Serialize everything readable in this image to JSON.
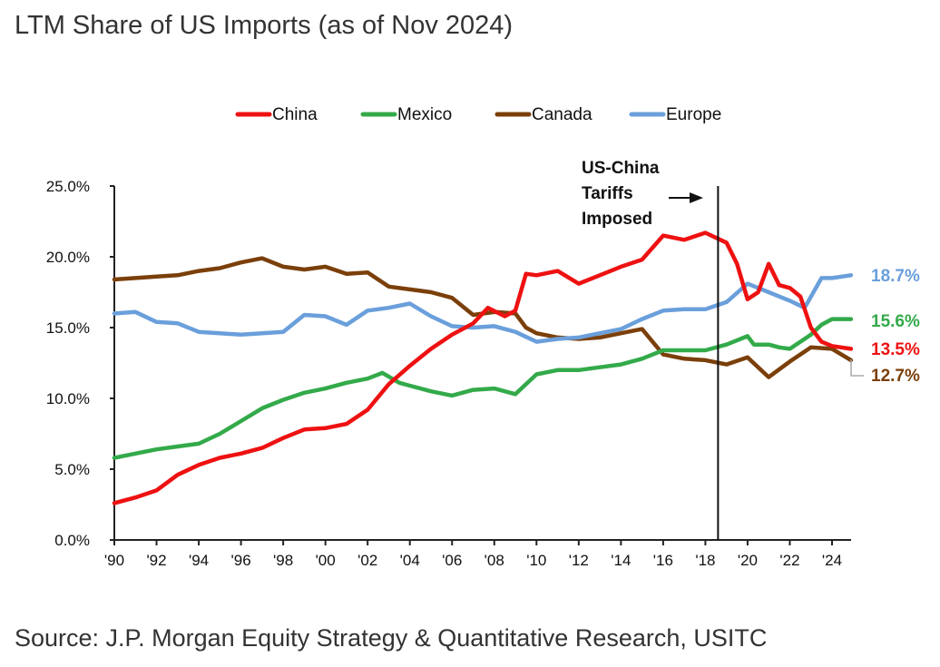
{
  "title": "LTM Share of US Imports (as of Nov 2024)",
  "source": "Source: J.P. Morgan Equity Strategy & Quantitative Research, USITC",
  "chart_data": {
    "type": "line",
    "title": "LTM Share of US Imports (as of Nov 2024)",
    "xlabel": "",
    "ylabel": "",
    "xlim": [
      1990,
      2024.9
    ],
    "ylim": [
      0,
      25
    ],
    "y_ticks": [
      "0.0%",
      "5.0%",
      "10.0%",
      "15.0%",
      "20.0%",
      "25.0%"
    ],
    "x_ticks": [
      "'90",
      "'92",
      "'94",
      "'96",
      "'98",
      "'00",
      "'02",
      "'04",
      "'06",
      "'08",
      "'10",
      "'12",
      "'14",
      "'16",
      "'18",
      "'20",
      "'22",
      "'24"
    ],
    "legend_placement": "top-center",
    "grid": false,
    "annotation": {
      "lines": [
        "US-China",
        "Tariffs",
        "Imposed"
      ],
      "x": 2018.6
    },
    "series": [
      {
        "name": "China",
        "color": "#ee1111",
        "end_label": "13.5%",
        "x": [
          1990,
          1991,
          1992,
          1993,
          1994,
          1995,
          1996,
          1997,
          1998,
          1999,
          2000,
          2001,
          2002,
          2003,
          2004,
          2005,
          2006,
          2007,
          2007.7,
          2008.5,
          2009,
          2009.5,
          2010,
          2011,
          2012,
          2013,
          2014,
          2015,
          2016,
          2017,
          2018,
          2019,
          2019.5,
          2020,
          2020.5,
          2021,
          2021.5,
          2022,
          2022.5,
          2023,
          2023.5,
          2024,
          2024.9
        ],
        "y": [
          2.6,
          3.0,
          3.5,
          4.6,
          5.3,
          5.8,
          6.1,
          6.5,
          7.2,
          7.8,
          7.9,
          8.2,
          9.2,
          11.0,
          12.3,
          13.5,
          14.5,
          15.3,
          16.4,
          15.8,
          16.2,
          18.8,
          18.7,
          19.0,
          18.1,
          18.7,
          19.3,
          19.8,
          21.5,
          21.2,
          21.7,
          21.0,
          19.5,
          17.0,
          17.5,
          19.5,
          18.0,
          17.8,
          17.2,
          15.0,
          14.0,
          13.7,
          13.5
        ]
      },
      {
        "name": "Mexico",
        "color": "#33aa4a",
        "end_label": "15.6%",
        "x": [
          1990,
          1991,
          1992,
          1993,
          1994,
          1995,
          1996,
          1997,
          1998,
          1999,
          2000,
          2001,
          2002,
          2002.7,
          2003.5,
          2004,
          2005,
          2006,
          2007,
          2008,
          2009,
          2010,
          2011,
          2012,
          2013,
          2014,
          2015,
          2016,
          2017,
          2018,
          2019,
          2020,
          2020.3,
          2021,
          2021.5,
          2022,
          2023,
          2023.5,
          2024,
          2024.9
        ],
        "y": [
          5.8,
          6.1,
          6.4,
          6.6,
          6.8,
          7.5,
          8.4,
          9.3,
          9.9,
          10.4,
          10.7,
          11.1,
          11.4,
          11.8,
          11.1,
          10.9,
          10.5,
          10.2,
          10.6,
          10.7,
          10.3,
          11.7,
          12.0,
          12.0,
          12.2,
          12.4,
          12.8,
          13.4,
          13.4,
          13.4,
          13.8,
          14.4,
          13.8,
          13.8,
          13.6,
          13.5,
          14.5,
          15.2,
          15.6,
          15.6
        ]
      },
      {
        "name": "Canada",
        "color": "#7b3f0a",
        "end_label": "12.7%",
        "x": [
          1990,
          1991,
          1992,
          1993,
          1994,
          1995,
          1996,
          1997,
          1998,
          1999,
          2000,
          2001,
          2002,
          2003,
          2004,
          2005,
          2006,
          2007,
          2008,
          2009,
          2009.5,
          2010,
          2011,
          2012,
          2013,
          2014,
          2015,
          2016,
          2017,
          2018,
          2019,
          2020,
          2021,
          2022,
          2023,
          2024,
          2024.9
        ],
        "y": [
          18.4,
          18.5,
          18.6,
          18.7,
          19.0,
          19.2,
          19.6,
          19.9,
          19.3,
          19.1,
          19.3,
          18.8,
          18.9,
          17.9,
          17.7,
          17.5,
          17.1,
          15.9,
          16.1,
          16.0,
          15.0,
          14.6,
          14.3,
          14.2,
          14.3,
          14.6,
          14.9,
          13.1,
          12.8,
          12.7,
          12.4,
          12.9,
          11.5,
          12.6,
          13.6,
          13.5,
          12.7
        ]
      },
      {
        "name": "Europe",
        "color": "#6a9fdb",
        "end_label": "18.7%",
        "x": [
          1990,
          1991,
          1992,
          1993,
          1994,
          1995,
          1996,
          1997,
          1998,
          1999,
          2000,
          2001,
          2002,
          2003,
          2004,
          2005,
          2006,
          2007,
          2008,
          2009,
          2010,
          2011,
          2012,
          2013,
          2014,
          2015,
          2016,
          2017,
          2018,
          2019,
          2020,
          2021,
          2022,
          2022.7,
          2023.5,
          2024,
          2024.9
        ],
        "y": [
          16.0,
          16.1,
          15.4,
          15.3,
          14.7,
          14.6,
          14.5,
          14.6,
          14.7,
          15.9,
          15.8,
          15.2,
          16.2,
          16.4,
          16.7,
          15.8,
          15.1,
          15.0,
          15.1,
          14.7,
          14.0,
          14.2,
          14.3,
          14.6,
          14.9,
          15.6,
          16.2,
          16.3,
          16.3,
          16.8,
          18.1,
          17.5,
          16.9,
          16.4,
          18.5,
          18.5,
          18.7
        ]
      }
    ]
  }
}
